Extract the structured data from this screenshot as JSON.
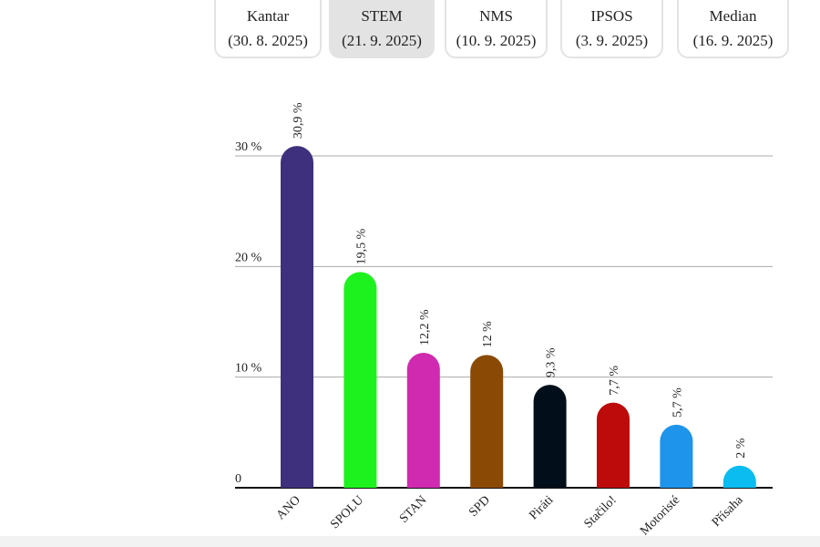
{
  "tabs": [
    {
      "name": "Kantar",
      "date": "(30. 8. 2025)",
      "selected": false
    },
    {
      "name": "STEM",
      "date": "(21. 9. 2025)",
      "selected": true
    },
    {
      "name": "NMS",
      "date": "(10. 9. 2025)",
      "selected": false
    },
    {
      "name": "IPSOS",
      "date": "(3. 9. 2025)",
      "selected": false
    },
    {
      "name": "Median",
      "date": "(16. 9. 2025)",
      "selected": false
    }
  ],
  "chart_data": {
    "type": "bar",
    "categories": [
      "ANO",
      "SPOLU",
      "STAN",
      "SPD",
      "Piráti",
      "Stačilo!",
      "Motoristé",
      "Přísaha"
    ],
    "values": [
      30.9,
      19.5,
      12.2,
      12,
      9.3,
      7.7,
      5.7,
      2
    ],
    "value_labels": [
      "30,9 %",
      "19,5 %",
      "12,2 %",
      "12 %",
      "9,3 %",
      "7,7 %",
      "5,7 %",
      "2 %"
    ],
    "colors": [
      "#3f307d",
      "#1ef21e",
      "#d02ab0",
      "#8a4a06",
      "#020f1a",
      "#bd0a0a",
      "#1e94ea",
      "#0bbcf0"
    ],
    "ylim": [
      0,
      33
    ],
    "yticks": [
      {
        "value": 0,
        "label": "0"
      },
      {
        "value": 10,
        "label": "10 %"
      },
      {
        "value": 20,
        "label": "20 %"
      },
      {
        "value": 30,
        "label": "30 %"
      }
    ],
    "grid": true
  }
}
